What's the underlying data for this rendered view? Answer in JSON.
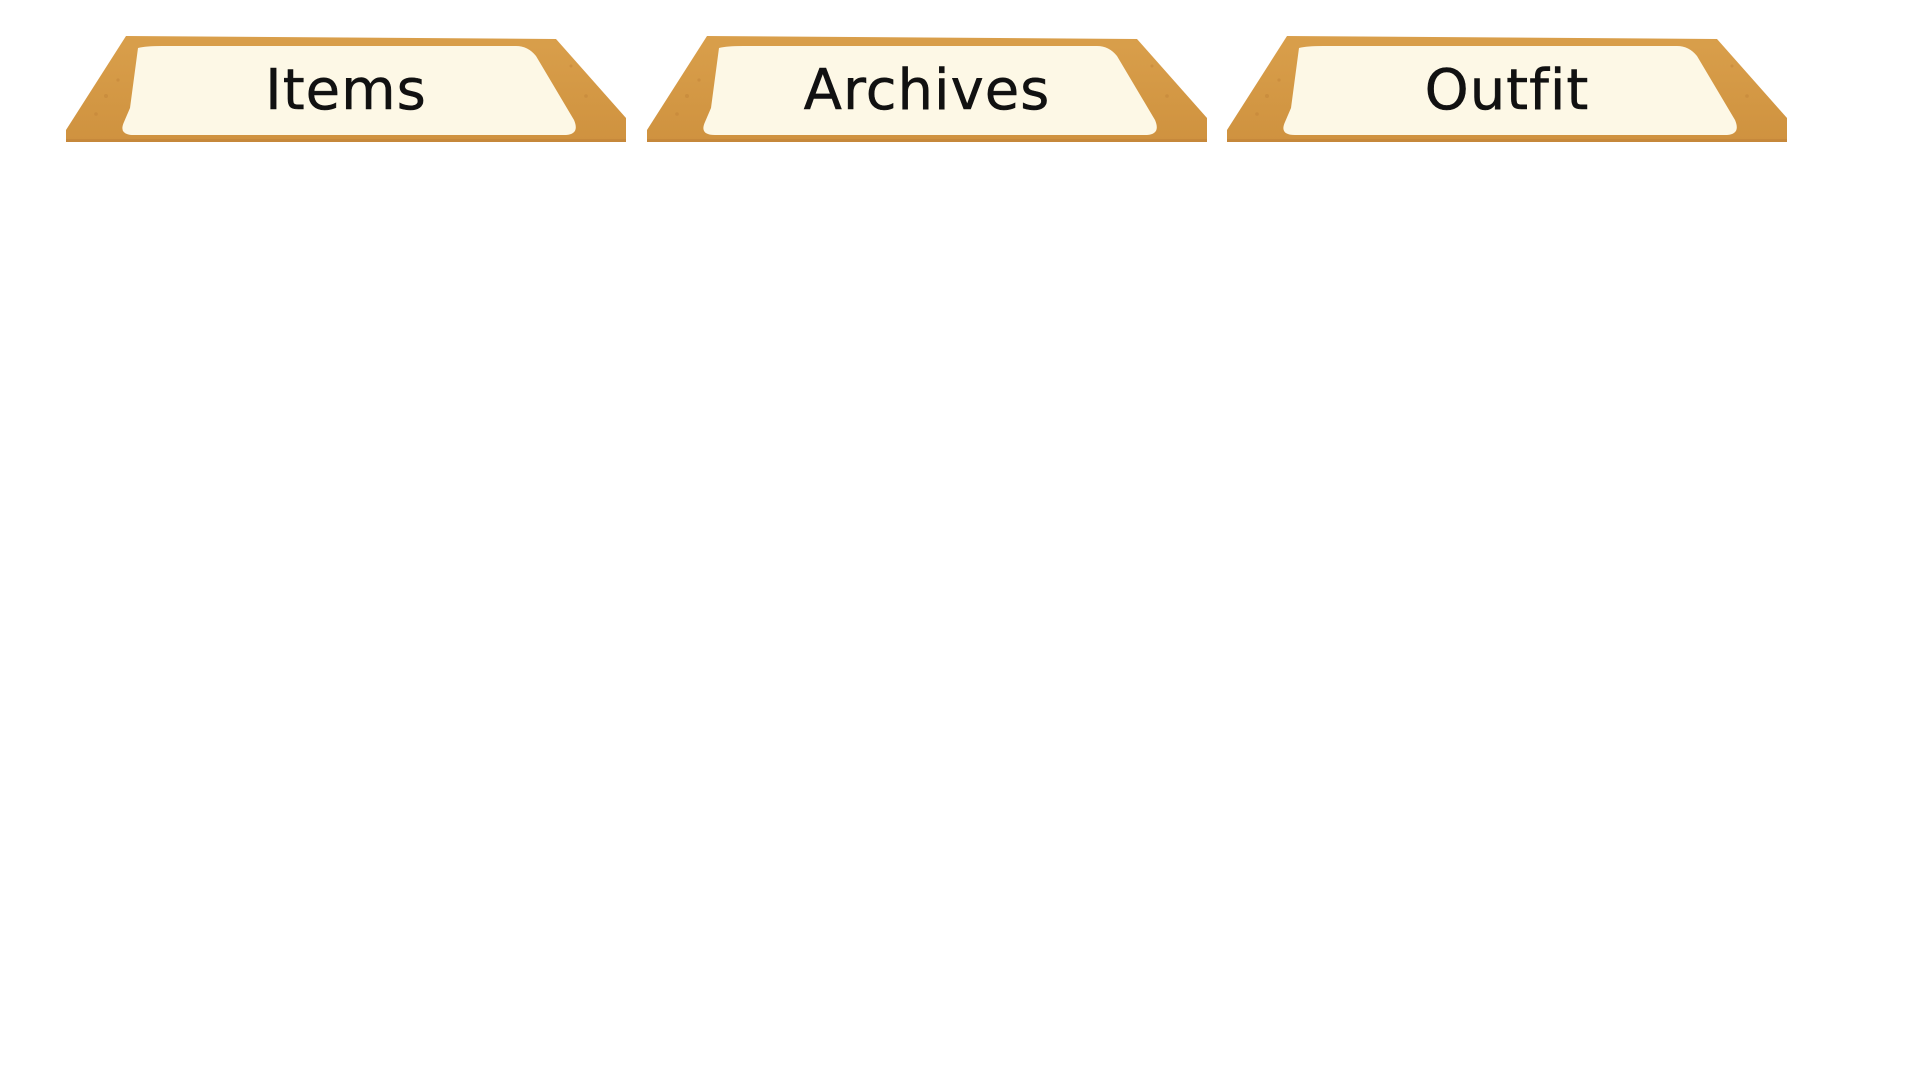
{
  "tabs": [
    {
      "id": "items",
      "label": "Items"
    },
    {
      "id": "archives",
      "label": "Archives"
    },
    {
      "id": "outfit",
      "label": "Outfit"
    }
  ],
  "colors": {
    "tab_outer": "#d59a45",
    "tab_outer_shade": "#c8893a",
    "tab_inner": "#fdf8e6",
    "label_text": "#111111",
    "background": "#ffffff"
  }
}
